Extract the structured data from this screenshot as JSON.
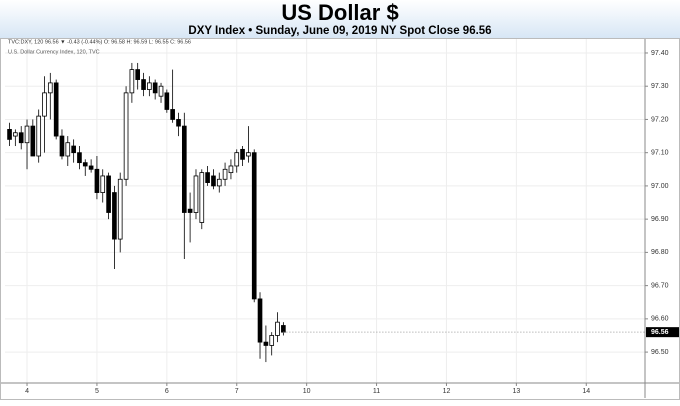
{
  "chart_data": {
    "type": "candlestick",
    "title": "US Dollar $",
    "subtitle": "DXY Index • Sunday, June 09, 2019 NY Spot Close 96.56",
    "legend_text": "TVC:DXY, 120  96.56 ▼ -0.43 (-0.44%)  O: 96.58  H: 96.59  L: 96.55  C: 96.56",
    "source": "U.S. Dollar Currency Index, 120, TVC",
    "x": [
      -0.25,
      -0.167,
      -0.083,
      0,
      0.083,
      0.167,
      0.25,
      0.333,
      0.417,
      0.5,
      0.583,
      0.667,
      0.75,
      0.833,
      0.917,
      1,
      1.083,
      1.167,
      1.25,
      1.333,
      1.417,
      1.5,
      1.583,
      1.667,
      1.75,
      1.833,
      1.917,
      2,
      2.083,
      2.167,
      2.25,
      2.333,
      2.417,
      2.5,
      2.583,
      2.667,
      2.75,
      2.833,
      2.917,
      3,
      3.083,
      3.167,
      3.25,
      3.333,
      3.417,
      3.5,
      3.583,
      3.667
    ],
    "open": [
      97.17,
      97.15,
      97.16,
      97.13,
      97.18,
      97.09,
      97.21,
      97.28,
      97.31,
      97.15,
      97.09,
      97.12,
      97.1,
      97.07,
      97.06,
      97.05,
      96.98,
      97.03,
      96.98,
      96.84,
      97.02,
      97.28,
      97.35,
      97.32,
      97.29,
      97.31,
      97.27,
      97.28,
      97.23,
      97.2,
      97.18,
      96.93,
      96.92,
      96.89,
      97.04,
      97.03,
      97.0,
      97.02,
      97.04,
      97.06,
      97.11,
      97.09,
      97.1,
      96.66,
      96.53,
      96.52,
      96.55,
      96.58
    ],
    "high": [
      97.19,
      97.17,
      97.18,
      97.2,
      97.2,
      97.23,
      97.33,
      97.34,
      97.32,
      97.17,
      97.15,
      97.14,
      97.12,
      97.08,
      97.08,
      97.09,
      97.05,
      97.04,
      97.0,
      97.04,
      97.3,
      97.37,
      97.37,
      97.34,
      97.33,
      97.32,
      97.31,
      97.29,
      97.35,
      97.22,
      97.22,
      96.98,
      97.05,
      97.05,
      97.06,
      97.05,
      97.04,
      97.07,
      97.08,
      97.11,
      97.12,
      97.18,
      97.11,
      96.68,
      96.58,
      96.56,
      96.62,
      96.59
    ],
    "low": [
      97.12,
      97.12,
      97.11,
      97.05,
      97.09,
      97.07,
      97.1,
      97.2,
      97.14,
      97.08,
      97.06,
      97.07,
      97.05,
      97.03,
      97.04,
      96.96,
      96.95,
      96.9,
      96.75,
      96.8,
      97.0,
      97.25,
      97.29,
      97.27,
      97.27,
      97.26,
      97.25,
      97.22,
      97.19,
      97.15,
      96.78,
      96.83,
      96.9,
      96.87,
      97.0,
      96.99,
      96.98,
      97.0,
      97.02,
      97.04,
      97.06,
      97.07,
      96.65,
      96.48,
      96.47,
      96.49,
      96.53,
      96.55
    ],
    "close": [
      97.14,
      97.16,
      97.13,
      97.18,
      97.09,
      97.21,
      97.28,
      97.31,
      97.15,
      97.09,
      97.13,
      97.1,
      97.07,
      97.06,
      97.05,
      96.98,
      97.03,
      96.92,
      96.84,
      97.02,
      97.28,
      97.35,
      97.32,
      97.29,
      97.31,
      97.28,
      97.3,
      97.23,
      97.2,
      97.18,
      96.92,
      96.92,
      97.03,
      97.04,
      97.01,
      97.0,
      97.02,
      97.05,
      97.06,
      97.1,
      97.08,
      97.1,
      96.66,
      96.53,
      96.52,
      96.55,
      96.59,
      96.56
    ],
    "xlim": [
      -0.315,
      8.84
    ],
    "xticks": [
      {
        "value": 0,
        "label": "4"
      },
      {
        "value": 1,
        "label": "5"
      },
      {
        "value": 2,
        "label": "6"
      },
      {
        "value": 3,
        "label": "7"
      },
      {
        "value": 4,
        "label": "10"
      },
      {
        "value": 5,
        "label": "11"
      },
      {
        "value": 6,
        "label": "12"
      },
      {
        "value": 7,
        "label": "13"
      },
      {
        "value": 8,
        "label": "14"
      }
    ],
    "ylim": [
      96.407,
      97.424
    ],
    "yticks": [
      {
        "value": 96.5,
        "label": "96.50"
      },
      {
        "value": 96.6,
        "label": "96.60"
      },
      {
        "value": 96.7,
        "label": "96.70"
      },
      {
        "value": 96.8,
        "label": "96.80"
      },
      {
        "value": 96.9,
        "label": "96.90"
      },
      {
        "value": 97.0,
        "label": "97.00"
      },
      {
        "value": 97.1,
        "label": "97.10"
      },
      {
        "value": 97.2,
        "label": "97.20"
      },
      {
        "value": 97.3,
        "label": "97.30"
      },
      {
        "value": 97.4,
        "label": "97.40"
      }
    ],
    "grid": true,
    "up_color": "#ffffff",
    "down_color": "#000000"
  }
}
